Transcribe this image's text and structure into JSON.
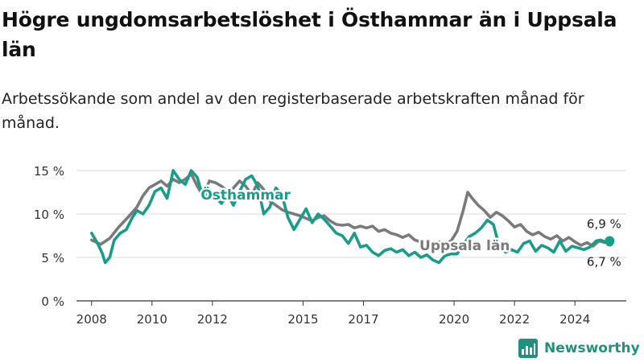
{
  "title": "Högre ungdomsarbetslöshet i Östhammar än i Uppsala län",
  "subtitle": "Arbetssökande som andel av den registerbaserade arbetskraften månad för månad.",
  "brand": "Newsworthy",
  "colors": {
    "osthammar": "#1a9c8a",
    "uppsala": "#7a7a7a",
    "grid": "#d9d9d9",
    "text": "#222222"
  },
  "chart_data": {
    "type": "line",
    "yticks": [
      "0 %",
      "5 %",
      "10 %",
      "15 %"
    ],
    "ytick_values": [
      0,
      5,
      10,
      15
    ],
    "xticks": [
      "2008",
      "2010",
      "2012",
      "2015",
      "2017",
      "2020",
      "2022",
      "2024"
    ],
    "xtick_values": [
      2008,
      2010,
      2012,
      2015,
      2017,
      2020,
      2022,
      2024
    ],
    "xlim": [
      2007.5,
      2025.7
    ],
    "ylim": [
      0,
      15
    ],
    "series": [
      {
        "name": "Uppsala län",
        "color": "#7a7a7a",
        "end_label": "6,7 %",
        "points": [
          [
            2008.0,
            7.0
          ],
          [
            2008.3,
            6.5
          ],
          [
            2008.6,
            7.2
          ],
          [
            2008.9,
            8.5
          ],
          [
            2009.2,
            9.6
          ],
          [
            2009.5,
            10.8
          ],
          [
            2009.7,
            12.1
          ],
          [
            2009.9,
            13.0
          ],
          [
            2010.1,
            13.4
          ],
          [
            2010.3,
            13.8
          ],
          [
            2010.5,
            13.2
          ],
          [
            2010.7,
            14.0
          ],
          [
            2010.9,
            13.6
          ],
          [
            2011.1,
            14.0
          ],
          [
            2011.3,
            14.6
          ],
          [
            2011.5,
            13.2
          ],
          [
            2011.7,
            12.0
          ],
          [
            2011.9,
            13.8
          ],
          [
            2012.1,
            13.6
          ],
          [
            2012.3,
            13.2
          ],
          [
            2012.5,
            12.6
          ],
          [
            2012.7,
            13.0
          ],
          [
            2012.9,
            13.8
          ],
          [
            2013.1,
            13.2
          ],
          [
            2013.3,
            12.2
          ],
          [
            2013.5,
            13.6
          ],
          [
            2013.7,
            12.8
          ],
          [
            2013.9,
            11.5
          ],
          [
            2014.1,
            11.0
          ],
          [
            2014.3,
            10.5
          ],
          [
            2014.5,
            10.2
          ],
          [
            2014.7,
            10.0
          ],
          [
            2014.9,
            9.8
          ],
          [
            2015.1,
            9.5
          ],
          [
            2015.3,
            9.2
          ],
          [
            2015.5,
            9.6
          ],
          [
            2015.7,
            9.8
          ],
          [
            2015.9,
            9.2
          ],
          [
            2016.1,
            8.8
          ],
          [
            2016.3,
            8.7
          ],
          [
            2016.5,
            8.8
          ],
          [
            2016.7,
            8.4
          ],
          [
            2016.9,
            8.6
          ],
          [
            2017.1,
            8.4
          ],
          [
            2017.3,
            8.6
          ],
          [
            2017.5,
            8.0
          ],
          [
            2017.7,
            8.2
          ],
          [
            2017.9,
            7.8
          ],
          [
            2018.1,
            7.6
          ],
          [
            2018.3,
            7.3
          ],
          [
            2018.5,
            7.6
          ],
          [
            2018.7,
            7.0
          ],
          [
            2018.9,
            6.8
          ],
          [
            2019.1,
            6.6
          ],
          [
            2019.3,
            6.4
          ],
          [
            2019.5,
            6.8
          ],
          [
            2019.7,
            6.6
          ],
          [
            2019.9,
            6.9
          ],
          [
            2020.1,
            8.0
          ],
          [
            2020.3,
            10.4
          ],
          [
            2020.45,
            12.5
          ],
          [
            2020.6,
            11.8
          ],
          [
            2020.8,
            11.0
          ],
          [
            2021.0,
            10.4
          ],
          [
            2021.2,
            9.6
          ],
          [
            2021.4,
            10.2
          ],
          [
            2021.6,
            9.8
          ],
          [
            2021.8,
            9.2
          ],
          [
            2022.0,
            8.5
          ],
          [
            2022.2,
            8.8
          ],
          [
            2022.4,
            8.0
          ],
          [
            2022.6,
            7.6
          ],
          [
            2022.8,
            7.9
          ],
          [
            2023.0,
            7.4
          ],
          [
            2023.2,
            7.1
          ],
          [
            2023.4,
            7.5
          ],
          [
            2023.6,
            6.9
          ],
          [
            2023.8,
            7.3
          ],
          [
            2024.0,
            6.8
          ],
          [
            2024.2,
            6.4
          ],
          [
            2024.4,
            6.7
          ],
          [
            2024.6,
            6.3
          ],
          [
            2024.8,
            6.9
          ],
          [
            2025.0,
            6.7
          ],
          [
            2025.15,
            6.7
          ]
        ]
      },
      {
        "name": "Östhammar",
        "color": "#1a9c8a",
        "end_label": "6,9 %",
        "points": [
          [
            2008.0,
            7.8
          ],
          [
            2008.2,
            6.6
          ],
          [
            2008.35,
            5.5
          ],
          [
            2008.45,
            4.4
          ],
          [
            2008.6,
            5.0
          ],
          [
            2008.75,
            7.0
          ],
          [
            2008.95,
            7.8
          ],
          [
            2009.15,
            8.2
          ],
          [
            2009.35,
            9.6
          ],
          [
            2009.5,
            10.4
          ],
          [
            2009.7,
            10.0
          ],
          [
            2009.9,
            11.0
          ],
          [
            2010.1,
            12.6
          ],
          [
            2010.3,
            13.0
          ],
          [
            2010.5,
            11.8
          ],
          [
            2010.7,
            15.0
          ],
          [
            2010.9,
            14.0
          ],
          [
            2011.1,
            13.4
          ],
          [
            2011.3,
            15.0
          ],
          [
            2011.5,
            14.2
          ],
          [
            2011.7,
            11.8
          ],
          [
            2011.9,
            12.8
          ],
          [
            2012.1,
            12.0
          ],
          [
            2012.3,
            11.2
          ],
          [
            2012.5,
            12.2
          ],
          [
            2012.7,
            11.0
          ],
          [
            2012.9,
            12.6
          ],
          [
            2013.1,
            14.0
          ],
          [
            2013.3,
            14.4
          ],
          [
            2013.5,
            13.2
          ],
          [
            2013.7,
            10.0
          ],
          [
            2013.9,
            10.8
          ],
          [
            2014.1,
            13.0
          ],
          [
            2014.3,
            12.2
          ],
          [
            2014.5,
            9.6
          ],
          [
            2014.7,
            8.2
          ],
          [
            2014.9,
            9.4
          ],
          [
            2015.1,
            10.6
          ],
          [
            2015.3,
            9.0
          ],
          [
            2015.5,
            10.0
          ],
          [
            2015.7,
            9.4
          ],
          [
            2015.9,
            8.6
          ],
          [
            2016.1,
            7.8
          ],
          [
            2016.3,
            7.5
          ],
          [
            2016.5,
            6.6
          ],
          [
            2016.7,
            7.8
          ],
          [
            2016.9,
            6.2
          ],
          [
            2017.1,
            6.4
          ],
          [
            2017.3,
            5.6
          ],
          [
            2017.5,
            5.2
          ],
          [
            2017.7,
            5.8
          ],
          [
            2017.9,
            6.0
          ],
          [
            2018.1,
            5.6
          ],
          [
            2018.3,
            5.9
          ],
          [
            2018.5,
            5.2
          ],
          [
            2018.7,
            5.6
          ],
          [
            2018.9,
            5.0
          ],
          [
            2019.1,
            5.3
          ],
          [
            2019.3,
            4.7
          ],
          [
            2019.5,
            4.4
          ],
          [
            2019.7,
            5.2
          ],
          [
            2019.9,
            5.4
          ],
          [
            2020.1,
            5.4
          ],
          [
            2020.3,
            6.5
          ],
          [
            2020.5,
            7.4
          ],
          [
            2020.7,
            7.8
          ],
          [
            2020.9,
            8.4
          ],
          [
            2021.1,
            9.3
          ],
          [
            2021.3,
            8.8
          ],
          [
            2021.5,
            6.2
          ],
          [
            2021.7,
            5.6
          ],
          [
            2021.9,
            5.9
          ],
          [
            2022.1,
            5.6
          ],
          [
            2022.3,
            6.6
          ],
          [
            2022.5,
            6.9
          ],
          [
            2022.7,
            5.7
          ],
          [
            2022.9,
            6.4
          ],
          [
            2023.1,
            6.1
          ],
          [
            2023.3,
            5.6
          ],
          [
            2023.5,
            6.9
          ],
          [
            2023.7,
            5.7
          ],
          [
            2023.9,
            6.3
          ],
          [
            2024.1,
            6.1
          ],
          [
            2024.3,
            5.9
          ],
          [
            2024.5,
            6.2
          ],
          [
            2024.7,
            6.9
          ],
          [
            2024.85,
            7.0
          ],
          [
            2025.0,
            6.8
          ],
          [
            2025.15,
            6.9
          ]
        ]
      }
    ],
    "annotations": [
      {
        "text": "Östhammar",
        "series": "Östhammar",
        "x": 2013.1,
        "y": 12.2
      },
      {
        "text": "Uppsala län",
        "series": "Uppsala län",
        "x": 2020.35,
        "y": 6.4
      }
    ]
  }
}
